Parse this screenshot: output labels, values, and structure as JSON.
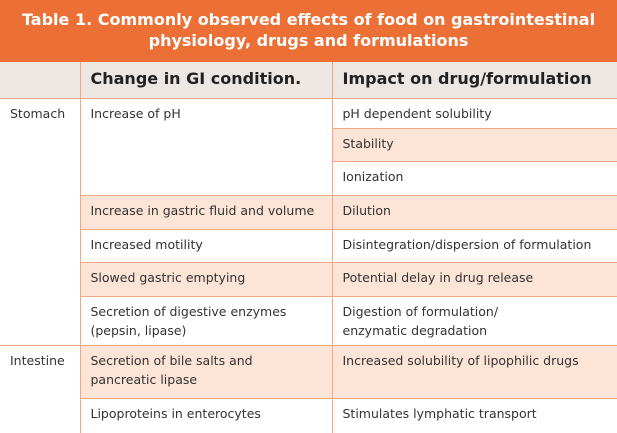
{
  "table": {
    "title": "Table 1. Commonly observed effects of food on gastrointestinal physiology, drugs and formulations",
    "headers": [
      "Change in GI condition.",
      "Impact on drug/formulation"
    ],
    "groups": [
      {
        "site": "Stomach",
        "changes": [
          {
            "change": "Increase of pH",
            "impacts": [
              "pH dependent solubility",
              "Stability",
              "Ionization"
            ]
          },
          {
            "change": "Increase in gastric fluid and volume",
            "impacts": [
              "Dilution"
            ]
          },
          {
            "change": "Increased motility",
            "impacts": [
              "Disintegration/dispersion of formulation"
            ]
          },
          {
            "change": "Slowed gastric emptying",
            "impacts": [
              "Potential delay in drug release"
            ]
          },
          {
            "change": "Secretion of digestive enzymes (pepsin, lipase)",
            "impacts": [
              "Digestion of formulation/\nenzymatic degradation"
            ]
          }
        ]
      },
      {
        "site": "Intestine",
        "changes": [
          {
            "change": "Secretion of bile salts and\npancreatic lipase",
            "impacts": [
              "Increased solubility of lipophilic drugs"
            ]
          },
          {
            "change": "Lipoproteins in enterocytes",
            "impacts": [
              "Stimulates lymphatic transport"
            ]
          }
        ]
      }
    ]
  }
}
